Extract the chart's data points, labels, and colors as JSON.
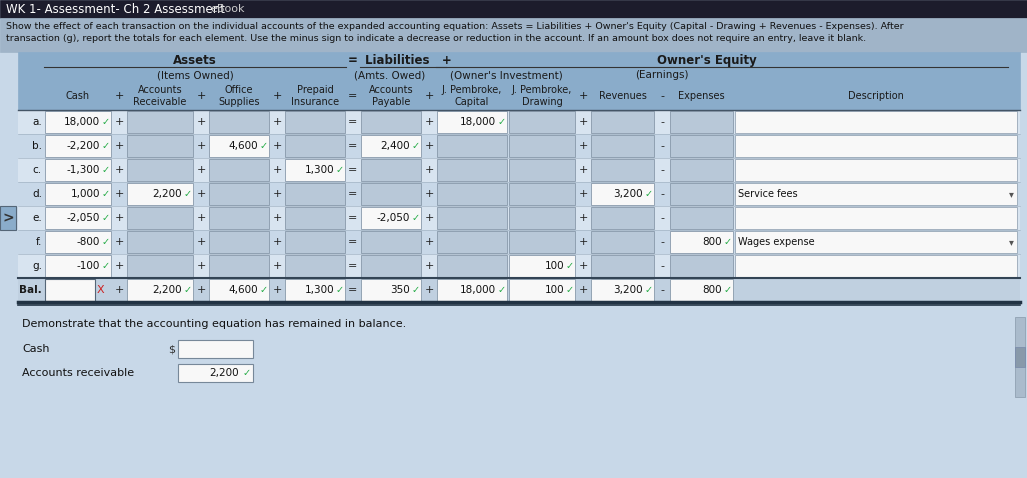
{
  "title": "WK 1- Assessment- Ch 2 Assessment",
  "ebook": "eBook",
  "desc_line1": "Show the effect of each transaction on the individual accounts of the expanded accounting equation: Assets = Liabilities + Owner's Equity (Capital - Drawing + Revenues - Expenses). After",
  "desc_line2": "transaction (g), report the totals for each element. Use the minus sign to indicate a decrease or reduction in the account. If an amount box does not require an entry, leave it blank.",
  "rows": [
    {
      "label": "a.",
      "cash": "18,000",
      "ar": "",
      "supplies": "",
      "prepaid": "",
      "ap": "",
      "capital": "18,000",
      "drawing": "",
      "revenues": "",
      "expenses": "",
      "desc": ""
    },
    {
      "label": "b.",
      "cash": "-2,200",
      "ar": "",
      "supplies": "4,600",
      "prepaid": "",
      "ap": "2,400",
      "capital": "",
      "drawing": "",
      "revenues": "",
      "expenses": "",
      "desc": ""
    },
    {
      "label": "c.",
      "cash": "-1,300",
      "ar": "",
      "supplies": "",
      "prepaid": "1,300",
      "ap": "",
      "capital": "",
      "drawing": "",
      "revenues": "",
      "expenses": "",
      "desc": ""
    },
    {
      "label": "d.",
      "cash": "1,000",
      "ar": "2,200",
      "supplies": "",
      "prepaid": "",
      "ap": "",
      "capital": "",
      "drawing": "",
      "revenues": "3,200",
      "expenses": "",
      "desc": "Service fees"
    },
    {
      "label": "e.",
      "cash": "-2,050",
      "ar": "",
      "supplies": "",
      "prepaid": "",
      "ap": "-2,050",
      "capital": "",
      "drawing": "",
      "revenues": "",
      "expenses": "",
      "desc": ""
    },
    {
      "label": "f.",
      "cash": "-800",
      "ar": "",
      "supplies": "",
      "prepaid": "",
      "ap": "",
      "capital": "",
      "drawing": "",
      "revenues": "",
      "expenses": "800",
      "desc": "Wages expense"
    },
    {
      "label": "g.",
      "cash": "-100",
      "ar": "",
      "supplies": "",
      "prepaid": "",
      "ap": "",
      "capital": "",
      "drawing": "100",
      "revenues": "",
      "expenses": "",
      "desc": ""
    }
  ],
  "bal": {
    "label": "Bal.",
    "cash": "",
    "ar": "2,200",
    "supplies": "4,600",
    "prepaid": "1,300",
    "ap": "350",
    "capital": "18,000",
    "drawing": "100",
    "revenues": "3,200",
    "expenses": "800"
  },
  "bottom_text": "Demonstrate that the accounting equation has remained in balance.",
  "cash_label": "Cash",
  "ar_label": "Accounts receivable",
  "ar_value": "2,200",
  "title_bg": "#1a1a2e",
  "topbar_bg": "#16213e",
  "table_header_bg": "#7090b8",
  "table_subheader_bg": "#8aa8c8",
  "row_bg_even": "#d8e4f0",
  "row_bg_odd": "#c8d8e8",
  "cell_white": "#f8f8f8",
  "cell_gray": "#b8c8d8",
  "bal_row_bg": "#c0d0e0",
  "bottom_bg": "#c8d8e8",
  "text_dark": "#1a1a1a",
  "text_white": "#ffffff",
  "text_gray": "#333333",
  "check_green": "#22aa44",
  "border_light": "#aabbcc",
  "border_dark": "#555566",
  "x_red": "#cc2222"
}
